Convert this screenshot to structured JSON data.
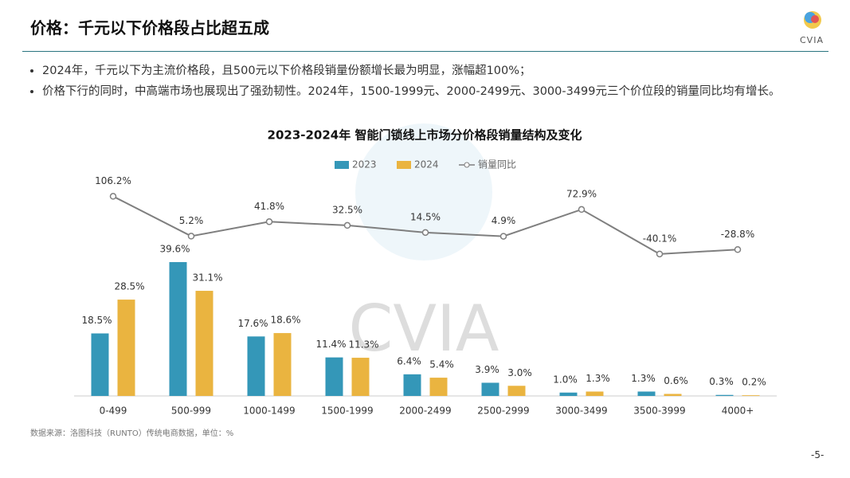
{
  "header": {
    "title": "价格：千元以下价格段占比超五成",
    "logo": "CVIA"
  },
  "bullets": [
    "2024年，千元以下为主流价格段，且500元以下价格段销量份额增长最为明显，涨幅超100%；",
    "价格下行的同时，中高端市场也展现出了强劲韧性。2024年，1500-1999元、2000-2499元、3000-3499元三个价位段的销量同比均有增长。"
  ],
  "chart_data": {
    "type": "bar",
    "title": "2023-2024年 智能门锁线上市场分价格段销量结构及变化",
    "watermark": "CVIA",
    "categories": [
      "0-499",
      "500-999",
      "1000-1499",
      "1500-1999",
      "2000-2499",
      "2500-2999",
      "3000-3499",
      "3500-3999",
      "4000+"
    ],
    "series": [
      {
        "name": "2023",
        "color": "#3497b8",
        "values": [
          18.5,
          39.6,
          17.6,
          11.4,
          6.4,
          3.9,
          1.0,
          1.3,
          0.3
        ],
        "value_labels": [
          "18.5%",
          "39.6%",
          "17.6%",
          "11.4%",
          "6.4%",
          "3.9%",
          "1.0%",
          "1.3%",
          "0.3%"
        ]
      },
      {
        "name": "2024",
        "color": "#eab440",
        "values": [
          28.5,
          31.1,
          18.6,
          11.3,
          5.4,
          3.0,
          1.3,
          0.6,
          0.2
        ],
        "value_labels": [
          "28.5%",
          "31.1%",
          "18.6%",
          "11.3%",
          "5.4%",
          "3.0%",
          "1.3%",
          "0.6%",
          "0.2%"
        ]
      },
      {
        "name": "销量同比",
        "type": "line",
        "axis": "y2",
        "color": "#7f7f7f",
        "values": [
          106.2,
          5.2,
          41.8,
          32.5,
          14.5,
          4.9,
          72.9,
          -40.1,
          -28.8
        ],
        "value_labels": [
          "106.2%",
          "5.2%",
          "41.8%",
          "32.5%",
          "14.5%",
          "4.9%",
          "72.9%",
          "-40.1%",
          "-28.8%"
        ]
      }
    ],
    "ylim": [
      0,
      70
    ],
    "y2lim": [
      -400,
      200
    ],
    "legend": "top"
  },
  "footer": {
    "source": "数据来源：洛图科技（RUNTO）传统电商数据，单位：%",
    "page": "-5-"
  }
}
